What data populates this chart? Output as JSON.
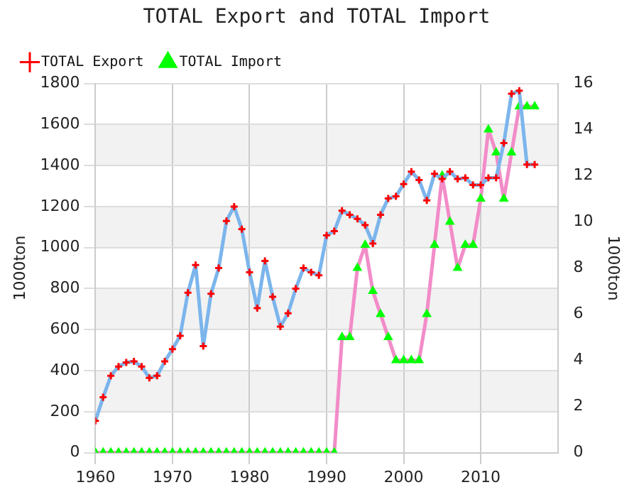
{
  "chart_data": {
    "type": "line",
    "title": "TOTAL Export and TOTAL Import",
    "ylabel": "1000ton",
    "y2label": "1000ton",
    "x": [
      1960,
      1961,
      1962,
      1963,
      1964,
      1965,
      1966,
      1967,
      1968,
      1969,
      1970,
      1971,
      1972,
      1973,
      1974,
      1975,
      1976,
      1977,
      1978,
      1979,
      1980,
      1981,
      1982,
      1983,
      1984,
      1985,
      1986,
      1987,
      1988,
      1989,
      1990,
      1991,
      1992,
      1993,
      1994,
      1995,
      1996,
      1997,
      1998,
      1999,
      2000,
      2001,
      2002,
      2003,
      2004,
      2005,
      2006,
      2007,
      2008,
      2009,
      2010,
      2011,
      2012,
      2013,
      2014,
      2015,
      2016,
      2017
    ],
    "xlim": [
      1960,
      2020
    ],
    "xticks": [
      1960,
      1970,
      1980,
      1990,
      2000,
      2010
    ],
    "ylim": [
      0,
      1800
    ],
    "yticks": [
      0,
      200,
      400,
      600,
      800,
      1000,
      1200,
      1400,
      1600,
      1800
    ],
    "y2lim": [
      0,
      16
    ],
    "y2ticks": [
      0,
      2,
      4,
      6,
      8,
      10,
      12,
      14,
      16
    ],
    "grid": true,
    "legend": "top",
    "series": [
      {
        "name": "TOTAL Export",
        "color": "#7cb5ec",
        "marker": "cross",
        "colors": [
          "#ff0000",
          "#ff0000",
          "#ff0000",
          "#ff0000",
          "#ff0000",
          "#ff0000",
          "#ff0000",
          "#ff0000",
          "#ff0000",
          "#ff0000",
          "#ff0000",
          "#ff0000",
          "#ff0000",
          "#ff0000",
          "#ff0000",
          "#ff0000",
          "#ff0000",
          "#ff0000",
          "#ff0000",
          "#ff0000",
          "#ff0000",
          "#ff0000",
          "#ff0000",
          "#ff0000",
          "#ff0000",
          "#ff0000",
          "#ff0000",
          "#ff0000",
          "#ff0000",
          "#ff0000",
          "#ff0000",
          "#ff0000",
          "#ff0000",
          "#ff0000",
          "#ff0000",
          "#ff0000",
          "#ff0000",
          "#ff0000",
          "#ff0000",
          "#ff0000",
          "#ff0000",
          "#ff0000",
          "#ff0000",
          "#ff0000",
          "#ff0000",
          "#ff0000",
          "#ff0000",
          "#ff0000",
          "#ff0000",
          "#ff0000",
          "#ff0000",
          "#ff0000",
          "#ff0000",
          "#ff0000",
          "#ff0000",
          "#ff0000",
          "#ff0000",
          "#ff0000"
        ],
        "values": [
          155,
          270,
          375,
          420,
          440,
          445,
          420,
          365,
          375,
          445,
          505,
          570,
          780,
          915,
          520,
          775,
          900,
          1130,
          1200,
          1090,
          880,
          705,
          935,
          760,
          615,
          680,
          800,
          900,
          880,
          865,
          1060,
          1080,
          1180,
          1160,
          1140,
          1110,
          1020,
          1160,
          1240,
          1250,
          1310,
          1370,
          1330,
          1230,
          1360,
          1335,
          1370,
          1335,
          1340,
          1305,
          1305,
          1340,
          1340,
          1510,
          1750,
          1765,
          1405,
          1405
        ]
      },
      {
        "name": "TOTAL Import",
        "color": "#f28cc8",
        "marker": "triangle",
        "axis": "y2",
        "colors": [
          "#00ff00",
          "#00ff00",
          "#00ff00",
          "#00ff00",
          "#00ff00",
          "#00ff00",
          "#00ff00",
          "#00ff00",
          "#00ff00",
          "#00ff00",
          "#00ff00",
          "#00ff00",
          "#00ff00",
          "#00ff00",
          "#00ff00",
          "#00ff00",
          "#00ff00",
          "#00ff00",
          "#00ff00",
          "#00ff00",
          "#00ff00",
          "#00ff00",
          "#00ff00",
          "#00ff00",
          "#00ff00",
          "#00ff00",
          "#00ff00",
          "#00ff00",
          "#00ff00",
          "#00ff00",
          "#00ff00",
          "#00ff00",
          "#00ff00",
          "#00ff00",
          "#00ff00",
          "#00ff00",
          "#00ff00",
          "#00ff00",
          "#00ff00",
          "#00ff00",
          "#00ff00",
          "#00ff00",
          "#00ff00",
          "#00ff00",
          "#00ff00",
          "#00ff00",
          "#00ff00",
          "#00ff00",
          "#00ff00",
          "#00ff00",
          "#00ff00",
          "#00ff00",
          "#00ff00",
          "#00ff00",
          "#00ff00",
          "#00ff00",
          "#00ff00",
          "#00ff00"
        ],
        "values": [
          0,
          0,
          0,
          0,
          0,
          0,
          0,
          0,
          0,
          0,
          0,
          0,
          0,
          0,
          0,
          0,
          0,
          0,
          0,
          0,
          0,
          0,
          0,
          0,
          0,
          0,
          0,
          0,
          0,
          0,
          0,
          0,
          5,
          5,
          8,
          9,
          7,
          6,
          5,
          4,
          4,
          4,
          4,
          6,
          9,
          12,
          10,
          8,
          9,
          9,
          11,
          14,
          13,
          11,
          13,
          15,
          15,
          15
        ]
      }
    ]
  }
}
